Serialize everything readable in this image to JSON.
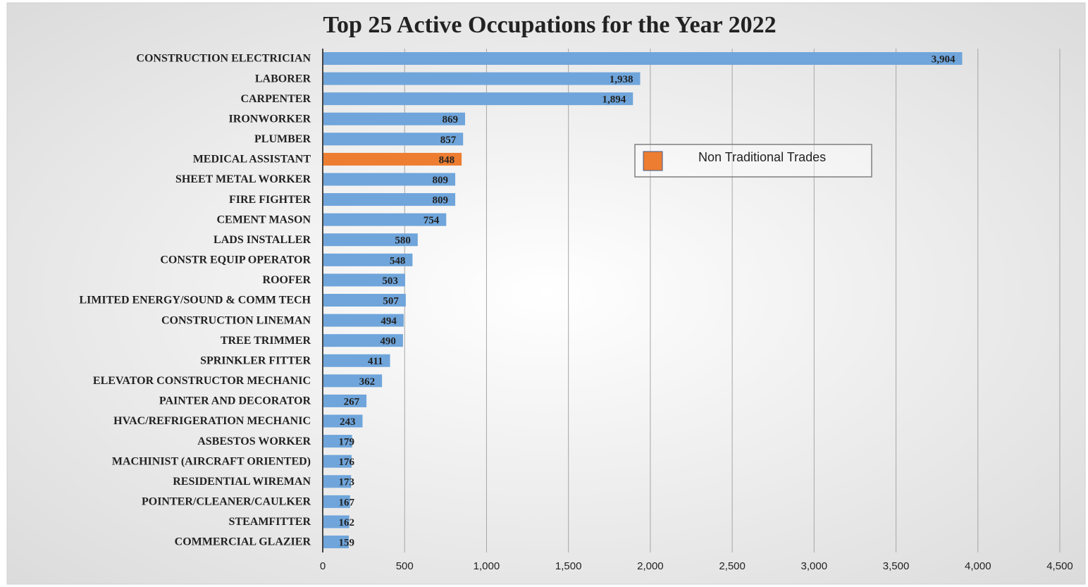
{
  "chart_data": {
    "type": "bar",
    "orientation": "horizontal",
    "title": "Top 25 Active Occupations for the Year 2022",
    "categories": [
      "CONSTRUCTION ELECTRICIAN",
      "LABORER",
      "CARPENTER",
      "IRONWORKER",
      "PLUMBER",
      "MEDICAL ASSISTANT",
      "SHEET METAL WORKER",
      "FIRE FIGHTER",
      "CEMENT MASON",
      "LADS INSTALLER",
      "CONSTR EQUIP OPERATOR",
      "ROOFER",
      "LIMITED ENERGY/SOUND & COMM TECH",
      "CONSTRUCTION LINEMAN",
      "TREE TRIMMER",
      "SPRINKLER FITTER",
      "ELEVATOR CONSTRUCTOR MECHANIC",
      "PAINTER AND DECORATOR",
      "HVAC/REFRIGERATION MECHANIC",
      "ASBESTOS WORKER",
      "MACHINIST (AIRCRAFT ORIENTED)",
      "RESIDENTIAL WIREMAN",
      "POINTER/CLEANER/CAULKER",
      "STEAMFITTER",
      "COMMERCIAL GLAZIER"
    ],
    "values": [
      3904,
      1938,
      1894,
      869,
      857,
      848,
      809,
      809,
      754,
      580,
      548,
      503,
      507,
      494,
      490,
      411,
      362,
      267,
      243,
      179,
      176,
      173,
      167,
      162,
      159
    ],
    "value_labels": [
      "3,904",
      "1,938",
      "1,894",
      "869",
      "857",
      "848",
      "809",
      "809",
      "754",
      "580",
      "548",
      "503",
      "507",
      "494",
      "490",
      "411",
      "362",
      "267",
      "243",
      "179",
      "176",
      "173",
      "167",
      "162",
      "159"
    ],
    "colors": [
      "#6fa5db",
      "#6fa5db",
      "#6fa5db",
      "#6fa5db",
      "#6fa5db",
      "#ed7d31",
      "#6fa5db",
      "#6fa5db",
      "#6fa5db",
      "#6fa5db",
      "#6fa5db",
      "#6fa5db",
      "#6fa5db",
      "#6fa5db",
      "#6fa5db",
      "#6fa5db",
      "#6fa5db",
      "#6fa5db",
      "#6fa5db",
      "#6fa5db",
      "#6fa5db",
      "#6fa5db",
      "#6fa5db",
      "#6fa5db",
      "#6fa5db"
    ],
    "xlim": [
      0,
      4500
    ],
    "xticks": [
      0,
      500,
      {
        "value": 1000,
        "label": "1,000"
      },
      {
        "value": 1500,
        "label": "1,500"
      },
      {
        "value": 2000,
        "label": "2,000"
      },
      {
        "value": 2500,
        "label": "2,500"
      },
      {
        "value": 3000,
        "label": "3,000"
      },
      {
        "value": 3500,
        "label": "3,500"
      },
      {
        "value": 4000,
        "label": "4,000"
      },
      {
        "value": 4500,
        "label": "4,500"
      }
    ],
    "grid": true,
    "legend": [
      {
        "name": "Non Traditional Trades",
        "color": "#ed7d31"
      }
    ]
  }
}
